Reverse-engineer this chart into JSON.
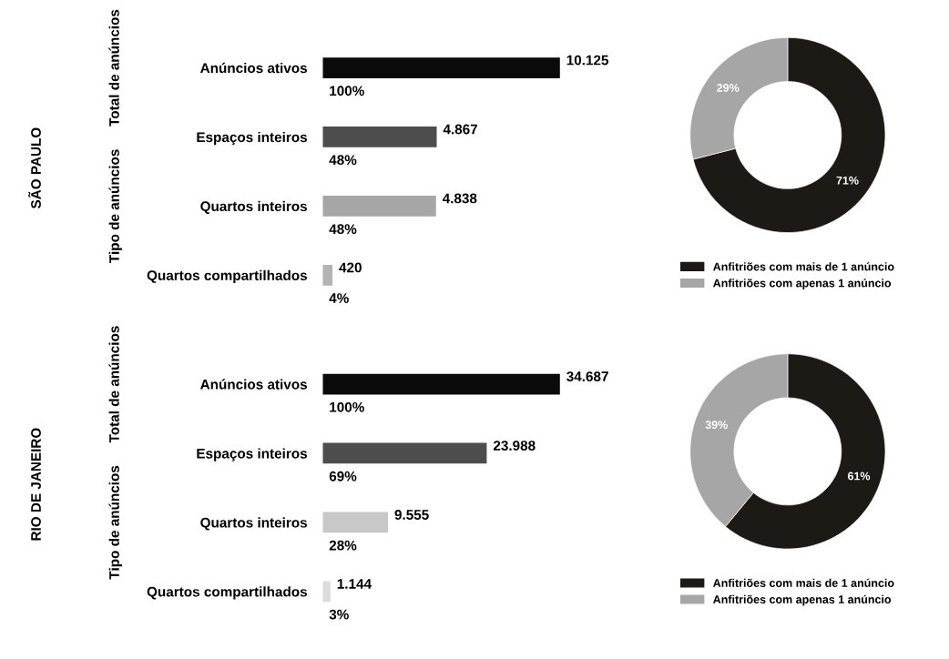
{
  "chart_data": [
    {
      "type": "bar",
      "orientation": "horizontal",
      "ylabel": "SÃO PAULO",
      "categories": [
        "Anúncios ativos",
        "Espaços inteiros",
        "Quartos inteiros",
        "Quartos compartilhados"
      ],
      "values": [
        10125,
        4867,
        4838,
        420
      ],
      "value_labels": [
        "10.125",
        "4.867",
        "4.838",
        "420"
      ],
      "colors": [
        "#0a0a0a",
        "#4d4d4d",
        "#a6a6a6",
        "#b3b3b3"
      ],
      "annotations": [
        "Total de anúncios",
        "Tipo de anúncios",
        "100%",
        "48%",
        "48%",
        "4%"
      ]
    },
    {
      "type": "donut",
      "categories": [
        "Anfitriões com mais de 1 anúncio",
        "Anfitriões com apenas 1 anúncio"
      ],
      "values": [
        71,
        29
      ],
      "value_labels": [
        "71%",
        "29%"
      ],
      "colors": [
        "#1c1a14",
        "#a6a6a6"
      ],
      "legend": "bottom"
    },
    {
      "type": "bar",
      "orientation": "horizontal",
      "ylabel": "RIO DE JANEIRO",
      "categories": [
        "Anúncios ativos",
        "Espaços inteiros",
        "Quartos inteiros",
        "Quartos compartilhados"
      ],
      "values": [
        34687,
        23988,
        9555,
        1144
      ],
      "value_labels": [
        "34.687",
        "23.988",
        "9.555",
        "1.144"
      ],
      "colors": [
        "#0a0a0a",
        "#4d4d4d",
        "#c8c8c8",
        "#dcdcdc"
      ],
      "annotations": [
        "Total de anúncios",
        "Tipo de anúncios",
        "100%",
        "69%",
        "28%",
        "3%"
      ]
    },
    {
      "type": "donut",
      "categories": [
        "Anfitriões com mais de 1 anúncio",
        "Anfitriões com apenas 1 anúncio"
      ],
      "values": [
        61,
        39
      ],
      "value_labels": [
        "61%",
        "39%"
      ],
      "colors": [
        "#1c1a14",
        "#a6a6a6"
      ],
      "legend": "bottom"
    }
  ]
}
